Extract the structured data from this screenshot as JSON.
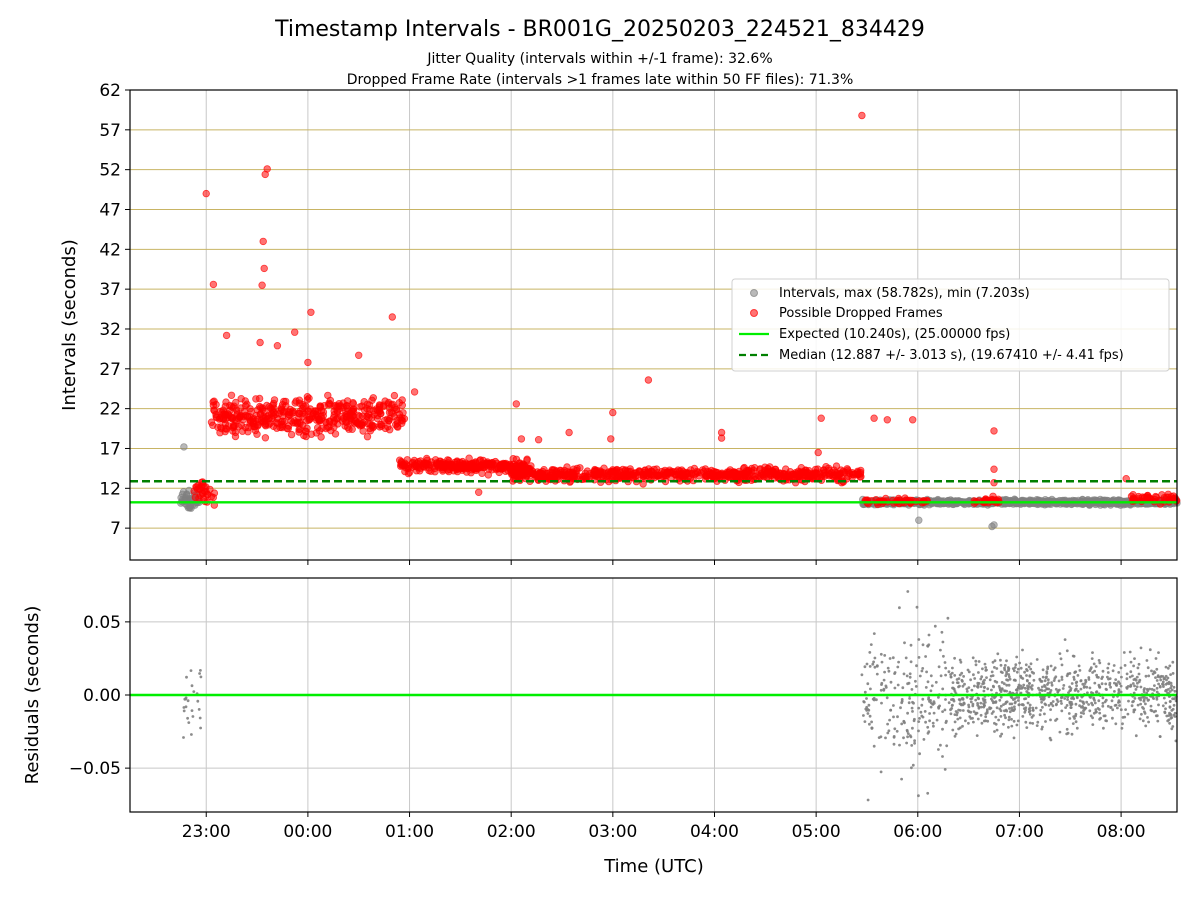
{
  "chart_data": {
    "title": "Timestamp Intervals - BR001G_20250203_224521_834429",
    "subtitle_lines": [
      "Jitter Quality (intervals within +/-1 frame): 32.6%",
      "Dropped Frame Rate (intervals >1 frames late within 50 FF files): 71.3%"
    ],
    "colors": {
      "intervals": "#808080",
      "dropped": "#ff0000",
      "expected": "#00ee00",
      "median": "#008000",
      "hgrid": "#c8b464",
      "vgrid": "#c8c8c8"
    },
    "panels": [
      {
        "type": "scatter",
        "ylabel": "Intervals (seconds)",
        "ylim": [
          3,
          62
        ],
        "yticks": [
          7,
          12,
          17,
          22,
          27,
          32,
          37,
          42,
          47,
          52,
          57,
          62
        ],
        "ytick_labels": [
          "7",
          "12",
          "17",
          "22",
          "27",
          "32",
          "37",
          "42",
          "47",
          "52",
          "57",
          "62"
        ],
        "grid": true,
        "legend": {
          "placement": "center-right",
          "entries": [
            {
              "label": "Intervals, max (58.782s), min (7.203s)",
              "marker": "dot",
              "color": "#808080"
            },
            {
              "label": "Possible Dropped Frames",
              "marker": "dot",
              "color": "#ff0000"
            },
            {
              "label": "Expected (10.240s), (25.00000 fps)",
              "marker": "line",
              "color": "#00ee00"
            },
            {
              "label": "Median (12.887 +/- 3.013 s), (19.67410 +/- 4.41 fps)",
              "marker": "dashed",
              "color": "#008000"
            }
          ]
        },
        "reference_lines": [
          {
            "y": 10.24,
            "style": "solid",
            "color": "#00ee00"
          },
          {
            "y": 12.887,
            "style": "dashed",
            "color": "#008000"
          }
        ],
        "segments": [
          {
            "name": "Intervals",
            "x_start": 22.75,
            "x_end": 22.95,
            "y_center": 10.5,
            "spread": 1.0,
            "count": 40,
            "color": "#808080"
          },
          {
            "name": "Possible Dropped Frames",
            "x_start": 22.88,
            "x_end": 23.08,
            "y_center": 11.5,
            "spread": 1.5,
            "count": 30,
            "color": "#ff0000"
          },
          {
            "name": "Possible Dropped Frames",
            "x_start": 23.05,
            "x_end": 24.95,
            "y_center": 21.0,
            "spread": 2.3,
            "count": 420,
            "color": "#ff0000"
          },
          {
            "name": "Possible Dropped Frames",
            "x_start": 24.9,
            "x_end": 26.2,
            "y_center": 14.8,
            "spread": 0.8,
            "count": 260,
            "color": "#ff0000"
          },
          {
            "name": "Possible Dropped Frames",
            "x_start": 26.0,
            "x_end": 29.45,
            "y_center": 13.7,
            "spread": 0.8,
            "count": 620,
            "color": "#ff0000"
          },
          {
            "name": "Intervals",
            "x_start": 29.45,
            "x_end": 32.55,
            "y_center": 10.25,
            "spread": 0.28,
            "count": 900,
            "color": "#808080"
          },
          {
            "name": "Possible Dropped Frames",
            "x_start": 29.45,
            "x_end": 30.1,
            "y_center": 10.4,
            "spread": 0.3,
            "count": 45,
            "color": "#ff0000"
          },
          {
            "name": "Possible Dropped Frames",
            "x_start": 30.55,
            "x_end": 30.8,
            "y_center": 10.4,
            "spread": 0.3,
            "count": 25,
            "color": "#ff0000"
          },
          {
            "name": "Possible Dropped Frames",
            "x_start": 32.1,
            "x_end": 32.55,
            "y_center": 10.7,
            "spread": 0.6,
            "count": 45,
            "color": "#ff0000"
          }
        ],
        "outliers": [
          {
            "x": 22.78,
            "y": 17.2,
            "color": "#808080"
          },
          {
            "x": 22.85,
            "y": 9.5,
            "color": "#808080"
          },
          {
            "x": 30.01,
            "y": 8.0,
            "color": "#808080"
          },
          {
            "x": 30.73,
            "y": 7.2,
            "color": "#808080"
          },
          {
            "x": 30.75,
            "y": 7.4,
            "color": "#808080"
          },
          {
            "x": 23.0,
            "y": 49.0,
            "color": "#ff0000"
          },
          {
            "x": 23.07,
            "y": 37.6,
            "color": "#ff0000"
          },
          {
            "x": 23.2,
            "y": 31.2,
            "color": "#ff0000"
          },
          {
            "x": 23.55,
            "y": 37.5,
            "color": "#ff0000"
          },
          {
            "x": 23.56,
            "y": 43.0,
            "color": "#ff0000"
          },
          {
            "x": 23.57,
            "y": 39.6,
            "color": "#ff0000"
          },
          {
            "x": 23.58,
            "y": 51.4,
            "color": "#ff0000"
          },
          {
            "x": 23.6,
            "y": 52.1,
            "color": "#ff0000"
          },
          {
            "x": 23.53,
            "y": 30.3,
            "color": "#ff0000"
          },
          {
            "x": 23.7,
            "y": 29.9,
            "color": "#ff0000"
          },
          {
            "x": 23.87,
            "y": 31.6,
            "color": "#ff0000"
          },
          {
            "x": 24.03,
            "y": 34.1,
            "color": "#ff0000"
          },
          {
            "x": 24.0,
            "y": 27.8,
            "color": "#ff0000"
          },
          {
            "x": 24.5,
            "y": 28.7,
            "color": "#ff0000"
          },
          {
            "x": 24.83,
            "y": 33.5,
            "color": "#ff0000"
          },
          {
            "x": 25.05,
            "y": 24.1,
            "color": "#ff0000"
          },
          {
            "x": 25.68,
            "y": 11.5,
            "color": "#ff0000"
          },
          {
            "x": 26.05,
            "y": 22.6,
            "color": "#ff0000"
          },
          {
            "x": 26.1,
            "y": 18.2,
            "color": "#ff0000"
          },
          {
            "x": 26.27,
            "y": 18.1,
            "color": "#ff0000"
          },
          {
            "x": 26.57,
            "y": 19.0,
            "color": "#ff0000"
          },
          {
            "x": 27.0,
            "y": 21.5,
            "color": "#ff0000"
          },
          {
            "x": 26.98,
            "y": 18.2,
            "color": "#ff0000"
          },
          {
            "x": 27.35,
            "y": 25.6,
            "color": "#ff0000"
          },
          {
            "x": 28.07,
            "y": 19.0,
            "color": "#ff0000"
          },
          {
            "x": 28.07,
            "y": 18.3,
            "color": "#ff0000"
          },
          {
            "x": 29.05,
            "y": 20.8,
            "color": "#ff0000"
          },
          {
            "x": 29.02,
            "y": 16.5,
            "color": "#ff0000"
          },
          {
            "x": 29.45,
            "y": 58.8,
            "color": "#ff0000"
          },
          {
            "x": 29.57,
            "y": 20.8,
            "color": "#ff0000"
          },
          {
            "x": 29.7,
            "y": 20.6,
            "color": "#ff0000"
          },
          {
            "x": 29.95,
            "y": 20.6,
            "color": "#ff0000"
          },
          {
            "x": 30.75,
            "y": 19.2,
            "color": "#ff0000"
          },
          {
            "x": 30.75,
            "y": 14.4,
            "color": "#ff0000"
          },
          {
            "x": 30.75,
            "y": 12.7,
            "color": "#ff0000"
          },
          {
            "x": 30.74,
            "y": 11.0,
            "color": "#ff0000"
          },
          {
            "x": 32.05,
            "y": 13.2,
            "color": "#ff0000"
          }
        ]
      },
      {
        "type": "scatter",
        "ylabel": "Residuals (seconds)",
        "ylim": [
          -0.08,
          0.08
        ],
        "yticks": [
          -0.05,
          0.0,
          0.05
        ],
        "ytick_labels": [
          "−0.05",
          "0.00",
          "0.05"
        ],
        "grid": true,
        "reference_lines": [
          {
            "y": 0.0,
            "style": "solid",
            "color": "#00ee00"
          }
        ],
        "segments": [
          {
            "name": "Residuals",
            "x_start": 22.75,
            "x_end": 22.95,
            "y_center": 0.0,
            "spread": 0.035,
            "count": 25,
            "color": "#808080"
          },
          {
            "name": "Residuals",
            "x_start": 29.45,
            "x_end": 30.3,
            "y_center": 0.0,
            "spread": 0.05,
            "count": 220,
            "color": "#808080"
          },
          {
            "name": "Residuals",
            "x_start": 30.3,
            "x_end": 32.55,
            "y_center": 0.0,
            "spread": 0.024,
            "count": 900,
            "color": "#808080"
          }
        ]
      }
    ],
    "x": {
      "label": "Time (UTC)",
      "lim": [
        22.25,
        32.55
      ],
      "ticks": [
        23,
        24,
        25,
        26,
        27,
        28,
        29,
        30,
        31,
        32
      ],
      "tick_labels": [
        "23:00",
        "00:00",
        "01:00",
        "02:00",
        "03:00",
        "04:00",
        "05:00",
        "06:00",
        "07:00",
        "08:00"
      ]
    }
  }
}
